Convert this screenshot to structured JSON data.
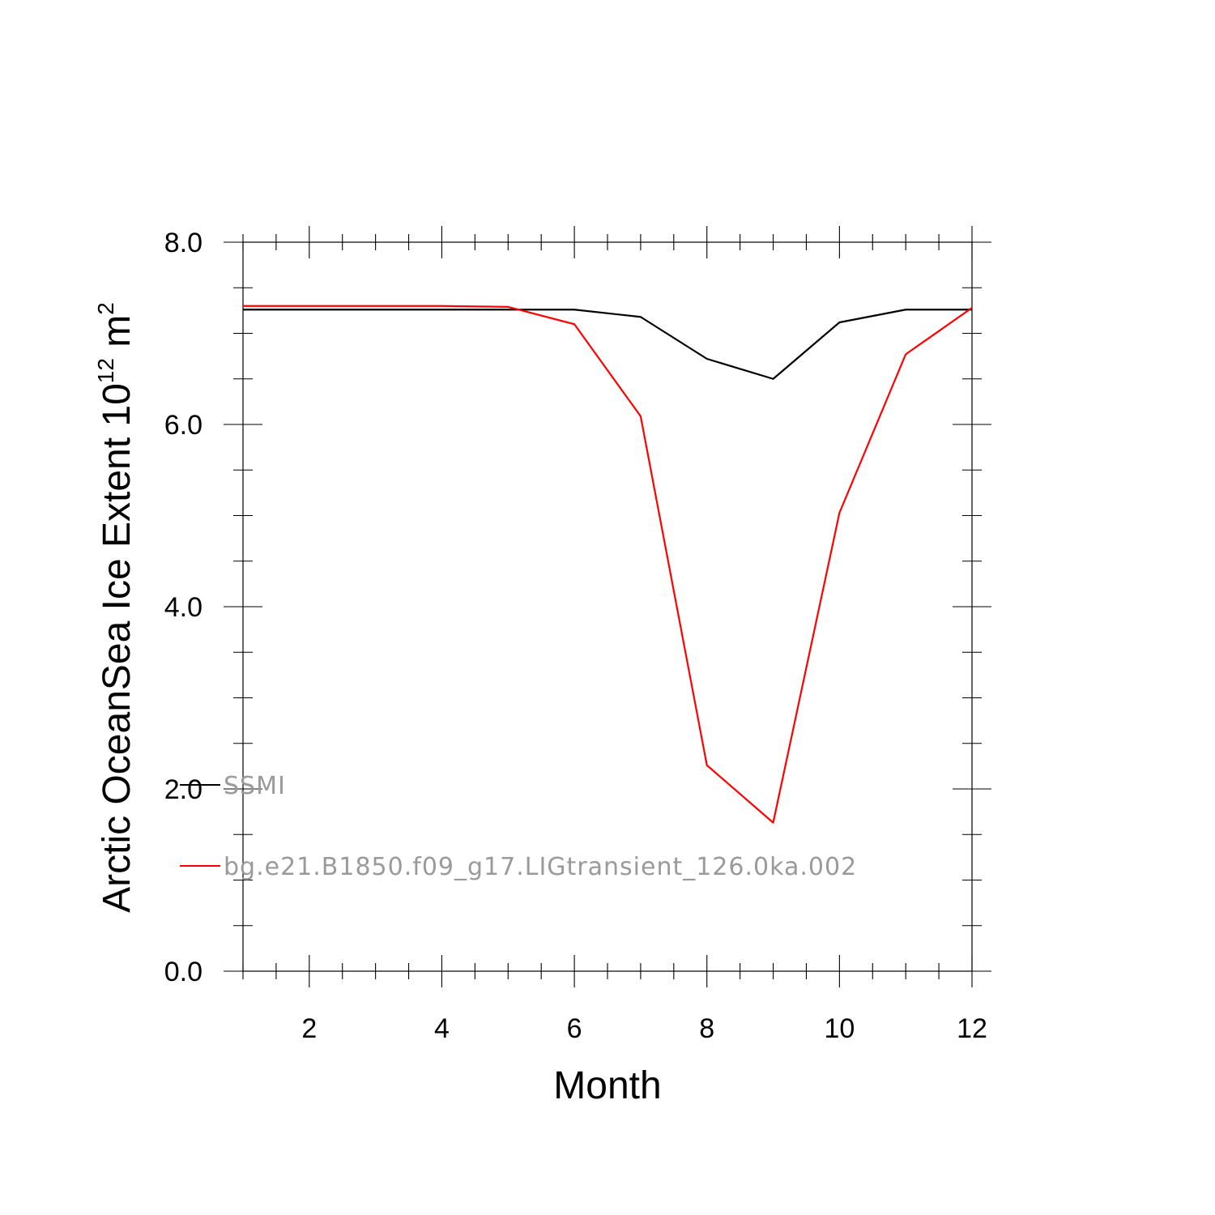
{
  "chart_data": {
    "type": "line",
    "title": "",
    "xlabel": "Month",
    "ylabel": {
      "prefix": "Arctic OceanSea Ice Extent 10",
      "exponent": "12",
      "unit": " m",
      "unit_exponent": "2"
    },
    "xlim": [
      1,
      12
    ],
    "ylim": [
      0,
      8
    ],
    "x_ticks": [
      2,
      4,
      6,
      8,
      10,
      12
    ],
    "x_tick_labels": [
      "2",
      "4",
      "6",
      "8",
      "10",
      "12"
    ],
    "y_ticks": [
      0,
      2,
      4,
      6,
      8
    ],
    "y_tick_labels": [
      "0.0",
      "2.0",
      "4.0",
      "6.0",
      "8.0"
    ],
    "grid": false,
    "legend_placement": "lower-left inside",
    "x": [
      1,
      2,
      3,
      4,
      5,
      6,
      7,
      8,
      9,
      10,
      11,
      12
    ],
    "series": [
      {
        "name": "SSMI",
        "color": "#000000",
        "values": [
          7.26,
          7.26,
          7.26,
          7.26,
          7.26,
          7.26,
          7.18,
          6.72,
          6.5,
          7.12,
          7.26,
          7.26
        ]
      },
      {
        "name": "bg.e21.B1850.f09_g17.LIGtransient_126.0ka.002",
        "color": "#ff0000",
        "values": [
          7.3,
          7.3,
          7.3,
          7.3,
          7.29,
          7.1,
          6.09,
          2.26,
          1.63,
          5.03,
          6.77,
          7.28
        ]
      }
    ]
  }
}
